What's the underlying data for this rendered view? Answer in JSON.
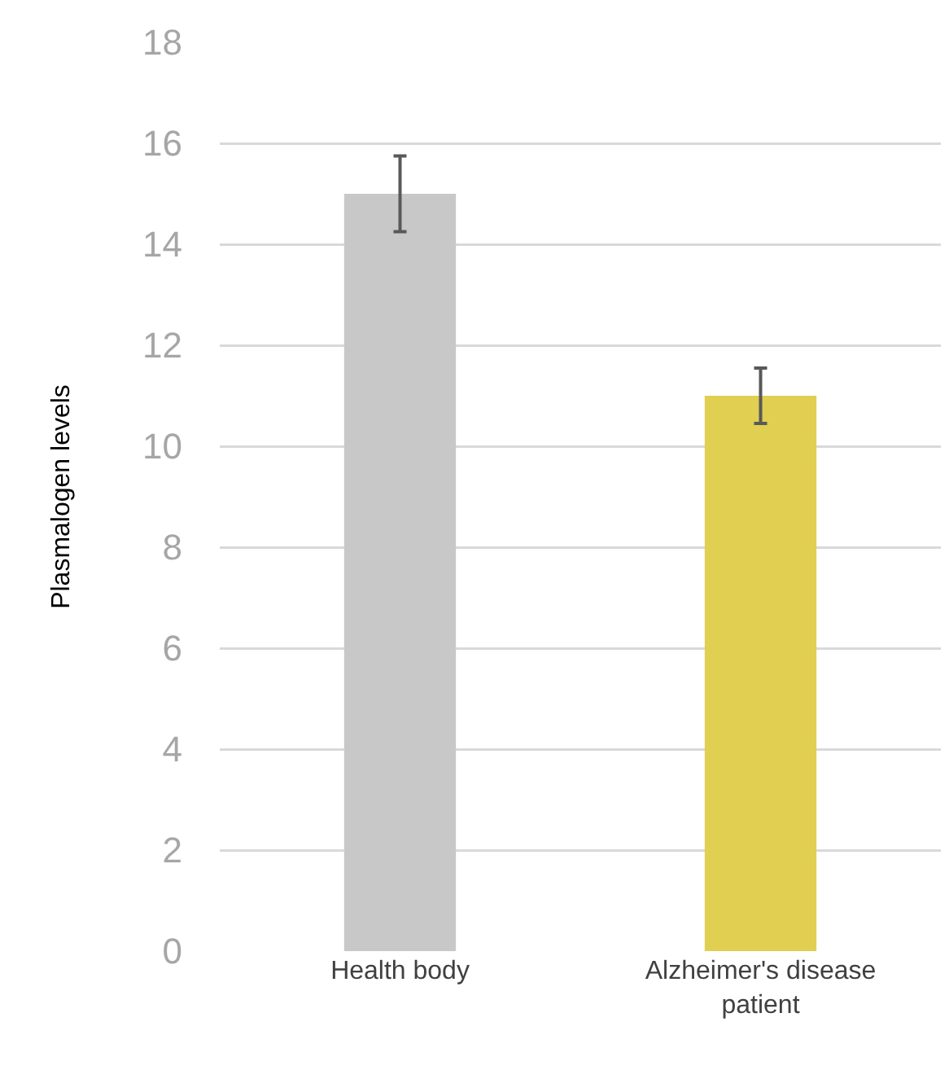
{
  "chart_data": {
    "type": "bar",
    "ylabel": "Plasmalogen levels",
    "categories": [
      "Health body",
      "Alzheimer's disease patient"
    ],
    "values": [
      15,
      11
    ],
    "colors": [
      "#c8c8c8",
      "#e0cf50"
    ],
    "errors": [
      0.75,
      0.55
    ],
    "ylim": [
      0,
      18
    ],
    "yticks": [
      0,
      2,
      4,
      6,
      8,
      10,
      12,
      14,
      16,
      18
    ],
    "grid": "y"
  }
}
